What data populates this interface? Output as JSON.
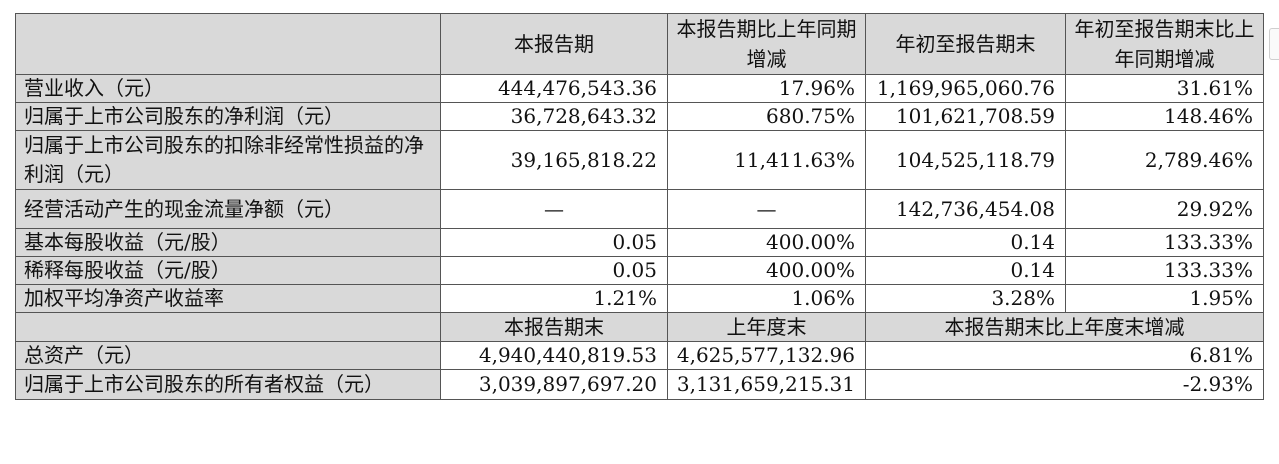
{
  "header": {
    "col1": "本报告期",
    "col2": "本报告期比上年同期增减",
    "col3": "年初至报告期末",
    "col4": "年初至报告期末比上年同期增减"
  },
  "rows": [
    {
      "label": "营业收入（元）",
      "v1": "444,476,543.36",
      "v2": "17.96%",
      "v3": "1,169,965,060.76",
      "v4": "31.61%"
    },
    {
      "label": "归属于上市公司股东的净利润（元）",
      "v1": "36,728,643.32",
      "v2": "680.75%",
      "v3": "101,621,708.59",
      "v4": "148.46%"
    },
    {
      "label": "归属于上市公司股东的扣除非经常性损益的净利润（元）",
      "v1": "39,165,818.22",
      "v2": "11,411.63%",
      "v3": "104,525,118.79",
      "v4": "2,789.46%"
    },
    {
      "label": "经营活动产生的现金流量净额（元）",
      "v1": "—",
      "v2": "—",
      "v3": "142,736,454.08",
      "v4": "29.92%"
    },
    {
      "label": "基本每股收益（元/股）",
      "v1": "0.05",
      "v2": "400.00%",
      "v3": "0.14",
      "v4": "133.33%"
    },
    {
      "label": "稀释每股收益（元/股）",
      "v1": "0.05",
      "v2": "400.00%",
      "v3": "0.14",
      "v4": "133.33%"
    },
    {
      "label": "加权平均净资产收益率",
      "v1": "1.21%",
      "v2": "1.06%",
      "v3": "3.28%",
      "v4": "1.95%"
    }
  ],
  "subheader": {
    "col1": "本报告期末",
    "col2": "上年度末",
    "col3": "本报告期末比上年度末增减"
  },
  "rows2": [
    {
      "label": "总资产（元）",
      "v1": "4,940,440,819.53",
      "v2": "4,625,577,132.96",
      "v3": "6.81%"
    },
    {
      "label": "归属于上市公司股东的所有者权益（元）",
      "v1": "3,039,897,697.20",
      "v2": "3,131,659,215.31",
      "v3": "-2.93%"
    }
  ]
}
